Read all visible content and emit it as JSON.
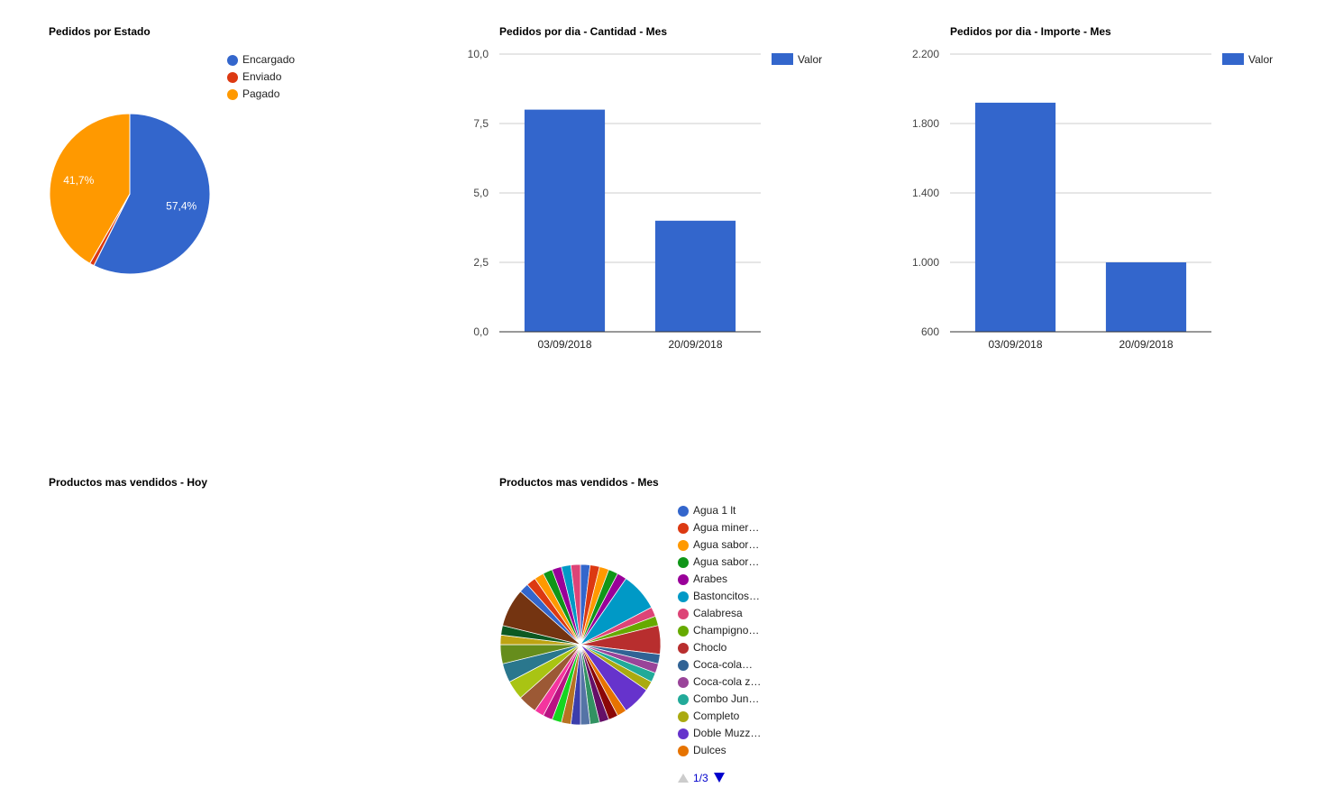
{
  "chart_data": [
    {
      "id": "estado",
      "type": "pie",
      "title": "Pedidos por Estado",
      "slices": [
        {
          "name": "Encargado",
          "value": 57.4,
          "label": "57,4%",
          "color": "#3366cc"
        },
        {
          "name": "Enviado",
          "value": 0.9,
          "label": "",
          "color": "#dc3912"
        },
        {
          "name": "Pagado",
          "value": 41.7,
          "label": "41,7%",
          "color": "#ff9900"
        }
      ],
      "legend": "right"
    },
    {
      "id": "cantidad",
      "type": "bar",
      "title": "Pedidos por dia - Cantidad - Mes",
      "categories": [
        "03/09/2018",
        "20/09/2018"
      ],
      "series": [
        {
          "name": "Valor",
          "values": [
            8,
            4
          ],
          "color": "#3366cc"
        }
      ],
      "ylim": [
        0,
        10
      ],
      "yticks": [
        "0,0",
        "2,5",
        "5,0",
        "7,5",
        "10,0"
      ],
      "grid": true,
      "legend": "right"
    },
    {
      "id": "importe",
      "type": "bar",
      "title": "Pedidos por dia - Importe - Mes",
      "categories": [
        "03/09/2018",
        "20/09/2018"
      ],
      "series": [
        {
          "name": "Valor",
          "values": [
            1920,
            1000
          ],
          "color": "#3366cc"
        }
      ],
      "ylim": [
        600,
        2200
      ],
      "yticks": [
        "600",
        "1.000",
        "1.400",
        "1.800",
        "2.200"
      ],
      "grid": true,
      "legend": "right"
    },
    {
      "id": "hoy",
      "type": "pie",
      "title": "Productos mas vendidos - Hoy",
      "slices": []
    },
    {
      "id": "mes",
      "type": "pie",
      "title": "Productos mas vendidos - Mes",
      "legend": "right",
      "legend_items": [
        {
          "name": "Agua 1 lt",
          "color": "#3366cc"
        },
        {
          "name": "Agua miner…",
          "color": "#dc3912"
        },
        {
          "name": "Agua sabor…",
          "color": "#ff9900"
        },
        {
          "name": "Agua sabor…",
          "color": "#109618"
        },
        {
          "name": "Arabes",
          "color": "#990099"
        },
        {
          "name": "Bastoncitos…",
          "color": "#0099c6"
        },
        {
          "name": "Calabresa",
          "color": "#dd4477"
        },
        {
          "name": "Champigno…",
          "color": "#66aa00"
        },
        {
          "name": "Choclo",
          "color": "#b82e2e"
        },
        {
          "name": "Coca-cola…",
          "color": "#316395"
        },
        {
          "name": "Coca-cola z…",
          "color": "#994499"
        },
        {
          "name": "Combo Jun…",
          "color": "#22aa99"
        },
        {
          "name": "Completo",
          "color": "#aaaa11"
        },
        {
          "name": "Doble Muzz…",
          "color": "#6633cc"
        },
        {
          "name": "Dulces",
          "color": "#e67300"
        }
      ],
      "pager": "1/3",
      "slices": [
        {
          "value": 1.0,
          "color": "#3366cc"
        },
        {
          "value": 1.0,
          "color": "#dc3912"
        },
        {
          "value": 1.0,
          "color": "#ff9900"
        },
        {
          "value": 1.0,
          "color": "#109618"
        },
        {
          "value": 1.0,
          "color": "#990099"
        },
        {
          "value": 4.0,
          "color": "#0099c6"
        },
        {
          "value": 1.0,
          "color": "#dd4477"
        },
        {
          "value": 1.0,
          "color": "#66aa00"
        },
        {
          "value": 3.0,
          "color": "#b82e2e"
        },
        {
          "value": 1.0,
          "color": "#316395"
        },
        {
          "value": 1.0,
          "color": "#994499"
        },
        {
          "value": 1.0,
          "color": "#22aa99"
        },
        {
          "value": 1.0,
          "color": "#aaaa11"
        },
        {
          "value": 3.0,
          "color": "#6633cc"
        },
        {
          "value": 1.0,
          "color": "#e67300"
        },
        {
          "value": 1.0,
          "color": "#8b0707"
        },
        {
          "value": 1.0,
          "color": "#651067"
        },
        {
          "value": 1.0,
          "color": "#329262"
        },
        {
          "value": 1.0,
          "color": "#5574a6"
        },
        {
          "value": 1.0,
          "color": "#3b3eac"
        },
        {
          "value": 1.0,
          "color": "#b77322"
        },
        {
          "value": 1.0,
          "color": "#16d620"
        },
        {
          "value": 1.0,
          "color": "#b91383"
        },
        {
          "value": 1.0,
          "color": "#f4359e"
        },
        {
          "value": 2.0,
          "color": "#9c5935"
        },
        {
          "value": 2.0,
          "color": "#a9c413"
        },
        {
          "value": 2.0,
          "color": "#2a778d"
        },
        {
          "value": 2.0,
          "color": "#668d1c"
        },
        {
          "value": 1.0,
          "color": "#bea413"
        },
        {
          "value": 1.0,
          "color": "#0c5922"
        },
        {
          "value": 4.0,
          "color": "#743411"
        },
        {
          "value": 1.0,
          "color": "#3366cc"
        },
        {
          "value": 1.0,
          "color": "#dc3912"
        },
        {
          "value": 1.0,
          "color": "#ff9900"
        },
        {
          "value": 1.0,
          "color": "#109618"
        },
        {
          "value": 1.0,
          "color": "#990099"
        },
        {
          "value": 1.0,
          "color": "#0099c6"
        },
        {
          "value": 1.0,
          "color": "#dd4477"
        }
      ]
    }
  ]
}
